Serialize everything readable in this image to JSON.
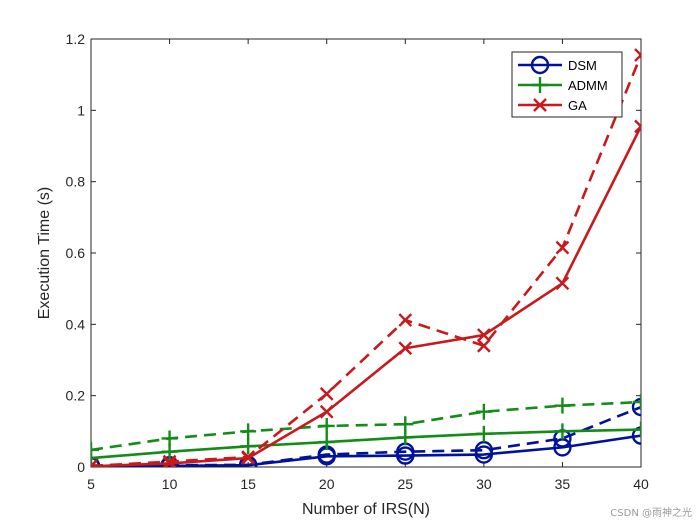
{
  "chart_data": {
    "type": "line",
    "title": "",
    "xlabel": "Number of IRS(N)",
    "ylabel": "Execution Time (s)",
    "x": [
      5,
      10,
      15,
      20,
      25,
      30,
      35,
      40
    ],
    "xlim": [
      5,
      40
    ],
    "ylim": [
      0,
      1.2
    ],
    "xticks": [
      "5",
      "10",
      "15",
      "20",
      "25",
      "30",
      "35",
      "40"
    ],
    "yticks": [
      "0",
      "0.2",
      "0.4",
      "0.6",
      "0.8",
      "1",
      "1.2"
    ],
    "legend_position": "top-right",
    "series": [
      {
        "name": "DSM",
        "style": "solid",
        "marker": "circle",
        "color": "#00119b",
        "values": [
          0.002,
          0.003,
          0.005,
          0.03,
          0.032,
          0.035,
          0.055,
          0.088
        ]
      },
      {
        "name": "DSM (dashed)",
        "style": "dashed",
        "marker": "circle",
        "color": "#00119b",
        "values": [
          0.004,
          0.005,
          0.006,
          0.035,
          0.043,
          0.047,
          0.08,
          0.168
        ]
      },
      {
        "name": "ADMM",
        "style": "solid",
        "marker": "plus",
        "color": "#138c18",
        "values": [
          0.025,
          0.043,
          0.058,
          0.07,
          0.083,
          0.093,
          0.1,
          0.105
        ]
      },
      {
        "name": "ADMM (dashed)",
        "style": "dashed",
        "marker": "plus",
        "color": "#138c18",
        "values": [
          0.048,
          0.08,
          0.1,
          0.115,
          0.12,
          0.155,
          0.172,
          0.182
        ]
      },
      {
        "name": "GA",
        "style": "solid",
        "marker": "x",
        "color": "#c8191c",
        "values": [
          0.002,
          0.01,
          0.025,
          0.155,
          0.333,
          0.37,
          0.515,
          0.955
        ]
      },
      {
        "name": "GA (dashed)",
        "style": "dashed",
        "marker": "x",
        "color": "#c8191c",
        "values": [
          0.003,
          0.015,
          0.028,
          0.205,
          0.412,
          0.34,
          0.615,
          1.155
        ]
      }
    ],
    "legend": [
      {
        "label": "DSM",
        "marker": "circle",
        "color": "#00119b"
      },
      {
        "label": "ADMM",
        "marker": "plus",
        "color": "#138c18"
      },
      {
        "label": "GA",
        "marker": "x",
        "color": "#c8191c"
      }
    ]
  },
  "watermark": "CSDN @雨神之光"
}
